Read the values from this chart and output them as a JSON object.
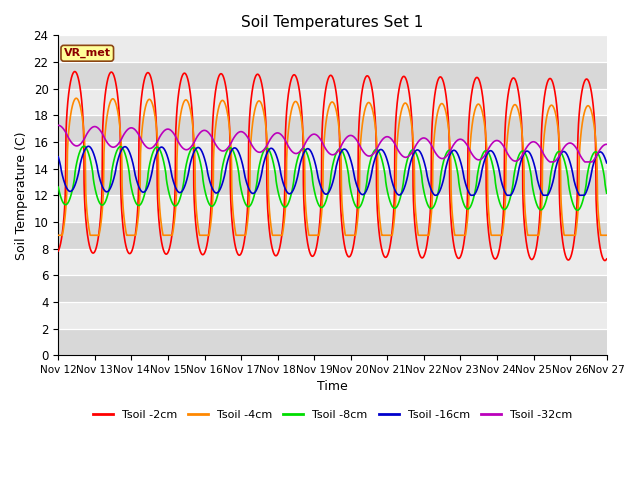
{
  "title": "Soil Temperatures Set 1",
  "xlabel": "Time",
  "ylabel": "Soil Temperature (C)",
  "ylim": [
    0,
    24
  ],
  "n_days": 15,
  "x_tick_labels": [
    "Nov 12",
    "Nov 13",
    "Nov 14",
    "Nov 15",
    "Nov 16",
    "Nov 17",
    "Nov 18",
    "Nov 19",
    "Nov 20",
    "Nov 21",
    "Nov 22",
    "Nov 23",
    "Nov 24",
    "Nov 25",
    "Nov 26",
    "Nov 27"
  ],
  "legend_labels": [
    "Tsoil -2cm",
    "Tsoil -4cm",
    "Tsoil -8cm",
    "Tsoil -16cm",
    "Tsoil -32cm"
  ],
  "line_colors": [
    "#ff0000",
    "#ff8800",
    "#00dd00",
    "#0000cc",
    "#bb00bb"
  ],
  "bg_color_light": "#ebebeb",
  "bg_color_dark": "#d8d8d8",
  "annotation_text": "VR_met",
  "annotation_bg": "#ffff99",
  "annotation_border": "#8b4513",
  "fig_bg": "#ffffff"
}
